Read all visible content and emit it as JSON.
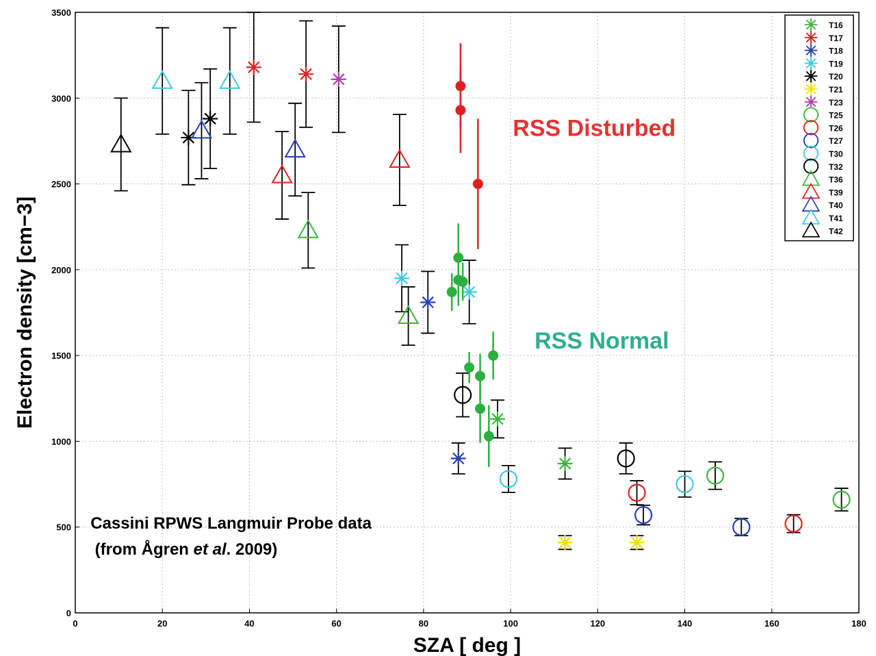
{
  "chart_data": {
    "type": "scatter",
    "title": "",
    "xlabel": "SZA   [ deg ]",
    "ylabel": "Electron density [cm−3]",
    "xlim": [
      0,
      180
    ],
    "ylim": [
      0,
      3500
    ],
    "xticks": [
      0,
      20,
      40,
      60,
      80,
      100,
      120,
      140,
      160,
      180
    ],
    "yticks": [
      0,
      500,
      1000,
      1500,
      2000,
      2500,
      3000,
      3500
    ],
    "grid": true,
    "legend_position": "top-right",
    "annotations": {
      "disturbed": "RSS Disturbed",
      "normal": "RSS Normal",
      "source_line1": "Cassini RPWS Langmuir   Probe data",
      "source_line2_prefix": "(from Ågren ",
      "source_line2_italic": "et al",
      "source_line2_suffix": ". 2009)"
    },
    "annotation_colors": {
      "disturbed": "#e53333",
      "normal": "#2fae8f"
    },
    "series": [
      {
        "name": "T16",
        "marker": "asterisk",
        "color": "#3cb43c",
        "points": [
          [
            97,
            1130,
            110
          ],
          [
            112.5,
            870,
            90
          ]
        ]
      },
      {
        "name": "T17",
        "marker": "asterisk",
        "color": "#e02020",
        "points": [
          [
            41,
            3180,
            320
          ],
          [
            53,
            3140,
            310
          ]
        ]
      },
      {
        "name": "T18",
        "marker": "asterisk",
        "color": "#2840b0",
        "points": [
          [
            81,
            1810,
            180
          ],
          [
            88,
            900,
            90
          ]
        ]
      },
      {
        "name": "T19",
        "marker": "asterisk",
        "color": "#40c8e0",
        "points": [
          [
            75,
            1950,
            195
          ],
          [
            90.5,
            1870,
            185
          ]
        ]
      },
      {
        "name": "T20",
        "marker": "asterisk",
        "color": "#000000",
        "points": [
          [
            26,
            2770,
            275
          ],
          [
            31,
            2880,
            290
          ]
        ]
      },
      {
        "name": "T21",
        "marker": "asterisk",
        "color": "#f0e000",
        "points": [
          [
            112.5,
            410,
            40
          ],
          [
            129,
            410,
            40
          ]
        ]
      },
      {
        "name": "T23",
        "marker": "asterisk",
        "color": "#b040b0",
        "points": [
          [
            60.5,
            3110,
            310
          ]
        ]
      },
      {
        "name": "T25",
        "marker": "circle",
        "color": "#3cb43c",
        "points": [
          [
            147,
            800,
            80
          ],
          [
            176,
            660,
            66
          ]
        ]
      },
      {
        "name": "T26",
        "marker": "circle",
        "color": "#e02020",
        "points": [
          [
            129,
            700,
            70
          ],
          [
            165,
            520,
            52
          ]
        ]
      },
      {
        "name": "T27",
        "marker": "circle",
        "color": "#2840b0",
        "points": [
          [
            130.5,
            570,
            57
          ],
          [
            153,
            500,
            50
          ]
        ]
      },
      {
        "name": "T30",
        "marker": "circle",
        "color": "#40c8e0",
        "points": [
          [
            99.5,
            780,
            78
          ],
          [
            140,
            750,
            75
          ]
        ]
      },
      {
        "name": "T32",
        "marker": "circle",
        "color": "#000000",
        "points": [
          [
            89,
            1270,
            127
          ],
          [
            126.5,
            900,
            90
          ]
        ]
      },
      {
        "name": "T36",
        "marker": "triangle",
        "color": "#3cb43c",
        "points": [
          [
            53.5,
            2230,
            220
          ],
          [
            76.5,
            1730,
            170
          ]
        ]
      },
      {
        "name": "T39",
        "marker": "triangle",
        "color": "#e02020",
        "points": [
          [
            47.5,
            2550,
            255
          ],
          [
            74.5,
            2640,
            265
          ]
        ]
      },
      {
        "name": "T40",
        "marker": "triangle",
        "color": "#2840b0",
        "points": [
          [
            29,
            2810,
            280
          ],
          [
            50.5,
            2700,
            270
          ]
        ]
      },
      {
        "name": "T41",
        "marker": "triangle",
        "color": "#40c8e0",
        "points": [
          [
            20,
            3100,
            310
          ],
          [
            35.5,
            3100,
            310
          ]
        ]
      },
      {
        "name": "T42",
        "marker": "triangle",
        "color": "#000000",
        "points": [
          [
            10.5,
            2730,
            270
          ]
        ]
      },
      {
        "marker": "dot",
        "color": "#e02020",
        "points": [
          [
            88.5,
            3070,
            250
          ],
          [
            88.5,
            2930,
            250
          ],
          [
            92.5,
            2500,
            380
          ]
        ]
      },
      {
        "marker": "dot",
        "color": "#2ab040",
        "points": [
          [
            88,
            2070,
            200
          ],
          [
            88,
            1940,
            150
          ],
          [
            89,
            1930,
            110
          ],
          [
            86.5,
            1870,
            110
          ],
          [
            90.5,
            1430,
            90
          ],
          [
            93,
            1380,
            130
          ],
          [
            96,
            1500,
            140
          ],
          [
            93,
            1190,
            200
          ],
          [
            95,
            1030,
            180
          ]
        ]
      }
    ]
  }
}
